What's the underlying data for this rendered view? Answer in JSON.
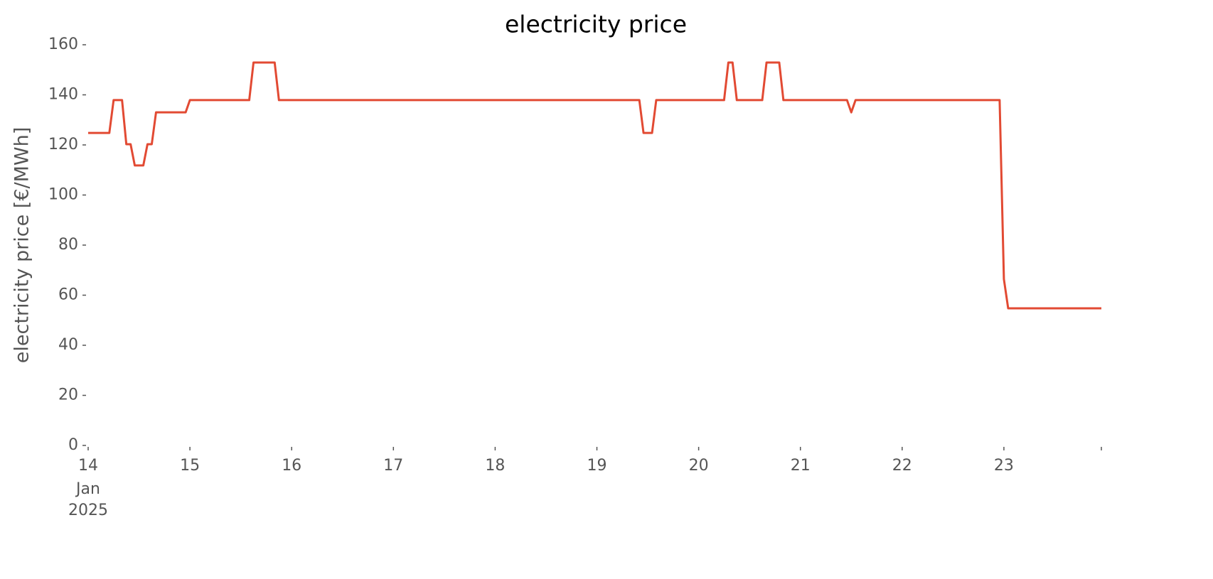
{
  "chart_data": {
    "type": "line",
    "title": "electricity price",
    "ylabel": "electricity price [€/MWh]",
    "x": [
      14,
      14.208,
      14.25,
      14.333,
      14.375,
      14.417,
      14.458,
      14.542,
      14.583,
      14.625,
      14.667,
      14.958,
      15,
      15.583,
      15.625,
      15.833,
      15.875,
      19.417,
      19.458,
      19.542,
      19.583,
      20.25,
      20.292,
      20.333,
      20.375,
      20.625,
      20.667,
      20.792,
      20.833,
      21.458,
      21.5,
      21.542,
      22.958,
      23,
      23.042,
      23.958
    ],
    "series": [
      {
        "name": "electricity price",
        "color": "#e24a33",
        "values": [
          124.8,
          124.8,
          137.9,
          137.9,
          120.3,
          120.3,
          111.8,
          111.8,
          120.3,
          120.3,
          133,
          133,
          137.9,
          137.9,
          152.9,
          152.9,
          137.9,
          137.9,
          124.8,
          124.8,
          137.9,
          137.9,
          152.9,
          152.9,
          137.9,
          137.9,
          152.9,
          152.9,
          137.9,
          137.9,
          133,
          137.9,
          137.9,
          66.4,
          54.75,
          54.75
        ]
      }
    ],
    "xlim": [
      14,
      23.958
    ],
    "xticks": [
      14,
      15,
      16,
      17,
      18,
      19,
      20,
      21,
      22,
      23,
      {
        "value": 23.958,
        "label": null
      }
    ],
    "x_tick_sublabels": [
      "Jan",
      "2025"
    ],
    "ylim": [
      0,
      160
    ],
    "yticks": [
      0,
      20,
      40,
      60,
      80,
      100,
      120,
      140,
      160
    ],
    "grid": false
  }
}
